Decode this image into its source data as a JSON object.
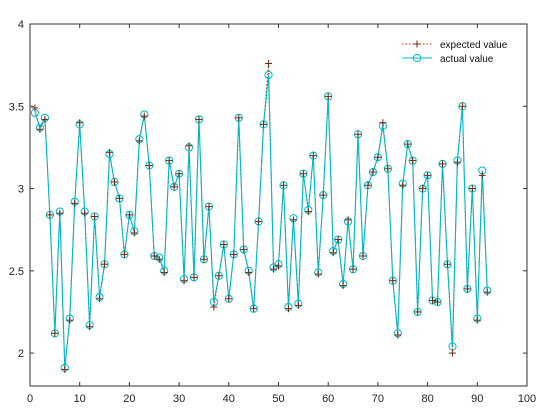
{
  "chart_data": {
    "type": "line",
    "title": "",
    "xlabel": "",
    "ylabel": "",
    "xlim": [
      0,
      100
    ],
    "ylim": [
      1.8,
      4
    ],
    "x_ticks": [
      0,
      10,
      20,
      30,
      40,
      50,
      60,
      70,
      80,
      90,
      100
    ],
    "y_ticks": [
      2,
      2.5,
      3,
      3.5,
      4
    ],
    "grid": false,
    "legend_position": "top-right",
    "x": [
      1,
      2,
      3,
      4,
      5,
      6,
      7,
      8,
      9,
      10,
      11,
      12,
      13,
      14,
      15,
      16,
      17,
      18,
      19,
      20,
      21,
      22,
      23,
      24,
      25,
      26,
      27,
      28,
      29,
      30,
      31,
      32,
      33,
      34,
      35,
      36,
      37,
      38,
      39,
      40,
      41,
      42,
      43,
      44,
      45,
      46,
      47,
      48,
      49,
      50,
      51,
      52,
      53,
      54,
      55,
      56,
      57,
      58,
      59,
      60,
      61,
      62,
      63,
      64,
      65,
      66,
      67,
      68,
      69,
      70,
      71,
      72,
      73,
      74,
      75,
      76,
      77,
      78,
      79,
      80,
      81,
      82,
      83,
      84,
      85,
      86,
      87,
      88,
      89,
      90,
      91,
      92
    ],
    "series": [
      {
        "name": "expected value",
        "color": "#cc2200",
        "style": "dotted-plus",
        "values": [
          3.49,
          3.36,
          3.42,
          2.84,
          2.12,
          2.85,
          1.9,
          2.2,
          2.91,
          3.4,
          2.85,
          2.16,
          2.83,
          2.33,
          2.54,
          3.22,
          3.04,
          2.94,
          2.6,
          2.84,
          2.73,
          3.29,
          3.44,
          3.14,
          2.59,
          2.57,
          2.49,
          3.17,
          3.01,
          3.09,
          2.44,
          3.26,
          2.46,
          3.42,
          2.57,
          2.89,
          2.28,
          2.47,
          2.66,
          2.33,
          2.6,
          3.43,
          2.63,
          2.49,
          2.27,
          2.8,
          3.39,
          3.76,
          2.51,
          2.53,
          3.02,
          2.27,
          2.81,
          2.29,
          3.09,
          2.86,
          3.2,
          2.48,
          2.96,
          3.56,
          2.61,
          2.69,
          2.41,
          2.81,
          2.51,
          3.33,
          2.59,
          3.02,
          3.1,
          3.19,
          3.4,
          3.12,
          2.44,
          2.11,
          3.02,
          3.27,
          3.17,
          2.25,
          3.0,
          3.08,
          2.32,
          2.31,
          3.15,
          2.54,
          2.0,
          3.16,
          3.5,
          2.39,
          3.0,
          2.2,
          3.08,
          2.37
        ]
      },
      {
        "name": "actual value",
        "color": "#00b8c8",
        "style": "solid-circle",
        "values": [
          3.46,
          3.37,
          3.43,
          2.84,
          2.12,
          2.86,
          1.91,
          2.21,
          2.92,
          3.39,
          2.86,
          2.17,
          2.83,
          2.34,
          2.54,
          3.21,
          3.04,
          2.94,
          2.6,
          2.84,
          2.74,
          3.3,
          3.45,
          3.14,
          2.59,
          2.58,
          2.5,
          3.17,
          3.01,
          3.09,
          2.45,
          3.25,
          2.46,
          3.42,
          2.57,
          2.89,
          2.31,
          2.47,
          2.66,
          2.33,
          2.6,
          3.43,
          2.63,
          2.5,
          2.27,
          2.8,
          3.39,
          3.69,
          2.52,
          2.54,
          3.02,
          2.28,
          2.82,
          2.3,
          3.09,
          2.87,
          3.2,
          2.49,
          2.96,
          3.56,
          2.62,
          2.69,
          2.42,
          2.8,
          2.51,
          3.33,
          2.59,
          3.02,
          3.1,
          3.19,
          3.38,
          3.12,
          2.44,
          2.12,
          3.03,
          3.27,
          3.17,
          2.25,
          3.0,
          3.08,
          2.32,
          2.31,
          3.15,
          2.54,
          2.04,
          3.17,
          3.5,
          2.39,
          3.0,
          2.21,
          3.11,
          2.38
        ]
      }
    ]
  }
}
